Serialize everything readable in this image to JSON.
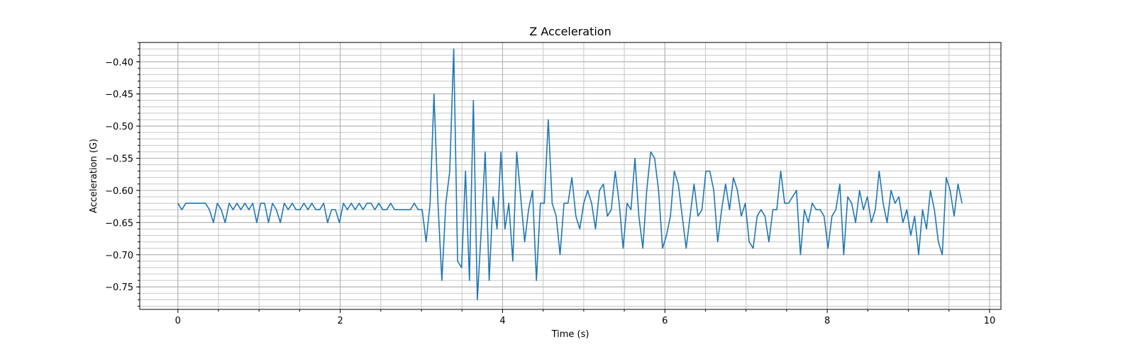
{
  "chart_data": {
    "type": "line",
    "title": "Z Acceleration",
    "xlabel": "Time (s)",
    "ylabel": "Acceleration (G)",
    "xlim": [
      -0.47,
      10.14
    ],
    "ylim": [
      -0.785,
      -0.37
    ],
    "x_ticks": [
      0,
      2,
      4,
      6,
      8,
      10
    ],
    "x_tick_labels": [
      "0",
      "2",
      "4",
      "6",
      "8",
      "10"
    ],
    "y_ticks": [
      -0.75,
      -0.7,
      -0.65,
      -0.6,
      -0.55,
      -0.5,
      -0.45,
      -0.4
    ],
    "y_tick_labels": [
      "−0.75",
      "−0.70",
      "−0.65",
      "−0.60",
      "−0.55",
      "−0.50",
      "−0.45",
      "−0.40"
    ],
    "grid": "major and minor",
    "line_color": "#1f77b4",
    "series": [
      {
        "x_step": 0.02,
        "x_start": 0,
        "values": [
          -0.62,
          -0.63,
          -0.62,
          -0.62,
          -0.62,
          -0.62,
          -0.62,
          -0.62,
          -0.63,
          -0.65,
          -0.62,
          -0.63,
          -0.65,
          -0.62,
          -0.63,
          -0.62,
          -0.63,
          -0.62,
          -0.63,
          -0.62,
          -0.65,
          -0.62,
          -0.62,
          -0.65,
          -0.62,
          -0.63,
          -0.65,
          -0.62,
          -0.63,
          -0.62,
          -0.63,
          -0.63,
          -0.62,
          -0.63,
          -0.62,
          -0.63,
          -0.63,
          -0.62,
          -0.65,
          -0.63,
          -0.63,
          -0.65,
          -0.62,
          -0.63,
          -0.62,
          -0.63,
          -0.62,
          -0.63,
          -0.62,
          -0.62,
          -0.63,
          -0.62,
          -0.63,
          -0.63,
          -0.62,
          -0.63,
          -0.63,
          -0.63,
          -0.63,
          -0.63,
          -0.62,
          -0.63,
          -0.63,
          -0.68,
          -0.62,
          -0.45,
          -0.62,
          -0.74,
          -0.62,
          -0.57,
          -0.38,
          -0.71,
          -0.72,
          -0.57,
          -0.74,
          -0.46,
          -0.77,
          -0.66,
          -0.54,
          -0.74,
          -0.61,
          -0.66,
          -0.54,
          -0.66,
          -0.62,
          -0.71,
          -0.54,
          -0.61,
          -0.68,
          -0.63,
          -0.6,
          -0.74,
          -0.62,
          -0.62,
          -0.49,
          -0.62,
          -0.64,
          -0.7,
          -0.62,
          -0.62,
          -0.58,
          -0.64,
          -0.66,
          -0.62,
          -0.6,
          -0.62,
          -0.66,
          -0.6,
          -0.59,
          -0.64,
          -0.63,
          -0.57,
          -0.62,
          -0.69,
          -0.62,
          -0.63,
          -0.55,
          -0.64,
          -0.69,
          -0.6,
          -0.54,
          -0.55,
          -0.6,
          -0.69,
          -0.67,
          -0.64,
          -0.57,
          -0.59,
          -0.64,
          -0.69,
          -0.64,
          -0.59,
          -0.64,
          -0.63,
          -0.57,
          -0.57,
          -0.6,
          -0.68,
          -0.63,
          -0.59,
          -0.63,
          -0.58,
          -0.6,
          -0.64,
          -0.62,
          -0.68,
          -0.69,
          -0.64,
          -0.63,
          -0.64,
          -0.68,
          -0.63,
          -0.63,
          -0.57,
          -0.62,
          -0.62,
          -0.61,
          -0.6,
          -0.7,
          -0.63,
          -0.65,
          -0.62,
          -0.63,
          -0.63,
          -0.64,
          -0.69,
          -0.64,
          -0.63,
          -0.59,
          -0.7,
          -0.61,
          -0.62,
          -0.65,
          -0.6,
          -0.63,
          -0.61,
          -0.65,
          -0.63,
          -0.57,
          -0.62,
          -0.65,
          -0.6,
          -0.62,
          -0.61,
          -0.65,
          -0.63,
          -0.67,
          -0.64,
          -0.7,
          -0.63,
          -0.66,
          -0.6,
          -0.63,
          -0.68,
          -0.7,
          -0.58,
          -0.6,
          -0.64,
          -0.59,
          -0.62
        ]
      }
    ]
  }
}
